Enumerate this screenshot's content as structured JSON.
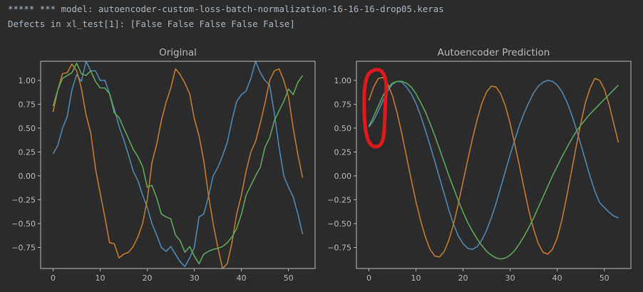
{
  "console": {
    "line1": "***** *** model: autoencoder-custom-loss-batch-normalization-16-16-16-drop05.keras",
    "line2": "Defects in xl_test[1]: [False False False False False]"
  },
  "colors": {
    "background": "#2b2b2b",
    "series_blue": "#4f87b0",
    "series_orange": "#c17a30",
    "series_green": "#5ea65a",
    "annotation_red": "#e0191c"
  },
  "chart_data": [
    {
      "type": "line",
      "title": "Original",
      "xlim": [
        -2.65,
        55.65
      ],
      "ylim": [
        -0.97,
        1.2
      ],
      "xticks": [
        0,
        10,
        20,
        30,
        40,
        50
      ],
      "yticks": [
        -0.75,
        -0.5,
        -0.25,
        0.0,
        0.25,
        0.5,
        0.75,
        1.0
      ],
      "xtick_labels": [
        "0",
        "10",
        "20",
        "30",
        "40",
        "50"
      ],
      "ytick_labels": [
        "−0.75",
        "−0.50",
        "−0.25",
        "0.00",
        "0.25",
        "0.50",
        "0.75",
        "1.00"
      ],
      "grid": false,
      "series": [
        {
          "color": "#4f87b0",
          "x": [
            0,
            1,
            2,
            3,
            4,
            5,
            6,
            7,
            8,
            9,
            10,
            11,
            12,
            13,
            14,
            15,
            16,
            17,
            18,
            19,
            20,
            21,
            22,
            23,
            24,
            25,
            26,
            27,
            28,
            29,
            30,
            31,
            32,
            33,
            34,
            35,
            36,
            37,
            38,
            39,
            40,
            41,
            42,
            43,
            44,
            45,
            46,
            47,
            48,
            49,
            50,
            51,
            52,
            53
          ],
          "y": [
            0.23,
            0.32,
            0.5,
            0.62,
            0.9,
            1.06,
            0.99,
            1.2,
            1.1,
            1.1,
            1.0,
            1.0,
            0.86,
            0.7,
            0.52,
            0.38,
            0.22,
            0.05,
            -0.05,
            -0.2,
            -0.33,
            -0.5,
            -0.62,
            -0.75,
            -0.79,
            -0.74,
            -0.82,
            -0.9,
            -0.95,
            -0.86,
            -0.75,
            -0.43,
            -0.4,
            -0.22,
            0.0,
            0.09,
            0.21,
            0.35,
            0.58,
            0.78,
            0.85,
            0.89,
            1.02,
            1.2,
            1.08,
            1.0,
            0.95,
            0.65,
            0.3,
            0.0,
            -0.12,
            -0.22,
            -0.4,
            -0.61
          ]
        },
        {
          "color": "#c17a30",
          "x": [
            0,
            1,
            2,
            3,
            4,
            5,
            6,
            7,
            8,
            9,
            10,
            11,
            12,
            13,
            14,
            15,
            16,
            17,
            18,
            19,
            20,
            21,
            22,
            23,
            24,
            25,
            26,
            27,
            28,
            29,
            30,
            31,
            32,
            33,
            34,
            35,
            36,
            37,
            38,
            39,
            40,
            41,
            42,
            43,
            44,
            45,
            46,
            47,
            48,
            49,
            50,
            51,
            52,
            53
          ],
          "y": [
            0.67,
            0.9,
            1.07,
            1.08,
            1.17,
            1.1,
            0.92,
            0.64,
            0.45,
            0.08,
            -0.18,
            -0.43,
            -0.7,
            -0.71,
            -0.86,
            -0.82,
            -0.8,
            -0.74,
            -0.64,
            -0.5,
            -0.25,
            0.14,
            0.33,
            0.58,
            0.77,
            0.92,
            1.12,
            1.06,
            0.97,
            0.86,
            0.6,
            0.42,
            0.16,
            -0.2,
            -0.5,
            -0.75,
            -0.97,
            -0.92,
            -0.7,
            -0.4,
            -0.2,
            0.05,
            0.25,
            0.36,
            0.55,
            0.76,
            1.0,
            1.1,
            1.12,
            1.0,
            0.83,
            0.5,
            0.22,
            -0.02
          ]
        },
        {
          "color": "#5ea65a",
          "x": [
            0,
            1,
            2,
            3,
            4,
            5,
            6,
            7,
            8,
            9,
            10,
            11,
            12,
            13,
            14,
            15,
            16,
            17,
            18,
            19,
            20,
            21,
            22,
            23,
            24,
            25,
            26,
            27,
            28,
            29,
            30,
            31,
            32,
            33,
            34,
            35,
            36,
            37,
            38,
            39,
            40,
            41,
            42,
            43,
            44,
            45,
            46,
            47,
            48,
            49,
            50,
            51,
            52,
            53
          ],
          "y": [
            0.73,
            0.9,
            1.02,
            1.05,
            1.08,
            1.18,
            1.07,
            1.05,
            1.1,
            0.99,
            0.92,
            0.92,
            0.86,
            0.66,
            0.61,
            0.5,
            0.39,
            0.28,
            0.2,
            0.1,
            -0.12,
            -0.1,
            -0.23,
            -0.4,
            -0.43,
            -0.45,
            -0.62,
            -0.68,
            -0.8,
            -0.74,
            -0.84,
            -0.92,
            -0.82,
            -0.79,
            -0.77,
            -0.76,
            -0.74,
            -0.7,
            -0.64,
            -0.55,
            -0.4,
            -0.2,
            -0.1,
            0.0,
            0.09,
            0.3,
            0.4,
            0.58,
            0.68,
            0.78,
            0.91,
            0.85,
            0.98,
            1.05
          ]
        }
      ]
    },
    {
      "type": "line",
      "title": "Autoencoder Prediction",
      "xlim": [
        -2.65,
        55.65
      ],
      "ylim": [
        -0.97,
        1.2
      ],
      "xticks": [
        0,
        10,
        20,
        30,
        40,
        50
      ],
      "yticks": [
        -0.75,
        -0.5,
        -0.25,
        0.0,
        0.25,
        0.5,
        0.75,
        1.0
      ],
      "xtick_labels": [
        "0",
        "10",
        "20",
        "30",
        "40",
        "50"
      ],
      "ytick_labels": [
        "−0.75",
        "−0.50",
        "−0.25",
        "0.00",
        "0.25",
        "0.50",
        "0.75",
        "1.00"
      ],
      "grid": false,
      "series": [
        {
          "color": "#4f87b0",
          "x": [
            0,
            1,
            2,
            3,
            4,
            5,
            6,
            7,
            8,
            9,
            10,
            11,
            12,
            13,
            14,
            15,
            16,
            17,
            18,
            19,
            20,
            21,
            22,
            23,
            24,
            25,
            26,
            27,
            28,
            29,
            30,
            31,
            32,
            33,
            34,
            35,
            36,
            37,
            38,
            39,
            40,
            41,
            42,
            43,
            44,
            45,
            46,
            47,
            48,
            49,
            50,
            51,
            52,
            53
          ],
          "y": [
            0.51,
            0.58,
            0.68,
            0.79,
            0.89,
            0.96,
            0.99,
            0.98,
            0.93,
            0.86,
            0.76,
            0.63,
            0.48,
            0.32,
            0.15,
            -0.02,
            -0.19,
            -0.36,
            -0.51,
            -0.63,
            -0.71,
            -0.76,
            -0.77,
            -0.74,
            -0.67,
            -0.57,
            -0.44,
            -0.29,
            -0.12,
            0.05,
            0.22,
            0.38,
            0.53,
            0.66,
            0.77,
            0.87,
            0.94,
            0.98,
            1.0,
            0.99,
            0.95,
            0.88,
            0.78,
            0.65,
            0.5,
            0.33,
            0.16,
            -0.01,
            -0.16,
            -0.28,
            -0.33,
            -0.38,
            -0.42,
            -0.44
          ]
        },
        {
          "color": "#c17a30",
          "x": [
            0,
            1,
            2,
            3,
            4,
            5,
            6,
            7,
            8,
            9,
            10,
            11,
            12,
            13,
            14,
            15,
            16,
            17,
            18,
            19,
            20,
            21,
            22,
            23,
            24,
            25,
            26,
            27,
            28,
            29,
            30,
            31,
            32,
            33,
            34,
            35,
            36,
            37,
            38,
            39,
            40,
            41,
            42,
            43,
            44,
            45,
            46,
            47,
            48,
            49,
            50,
            51,
            52,
            53
          ],
          "y": [
            0.79,
            0.93,
            1.02,
            1.03,
            0.96,
            0.84,
            0.66,
            0.44,
            0.2,
            -0.04,
            -0.27,
            -0.47,
            -0.64,
            -0.77,
            -0.84,
            -0.85,
            -0.79,
            -0.67,
            -0.5,
            -0.29,
            -0.06,
            0.17,
            0.39,
            0.59,
            0.76,
            0.88,
            0.94,
            0.93,
            0.86,
            0.73,
            0.55,
            0.33,
            0.1,
            -0.14,
            -0.37,
            -0.56,
            -0.71,
            -0.8,
            -0.82,
            -0.77,
            -0.65,
            -0.46,
            -0.22,
            0.04,
            0.3,
            0.55,
            0.77,
            0.92,
            1.02,
            1.0,
            0.91,
            0.75,
            0.55,
            0.35
          ]
        },
        {
          "color": "#5ea65a",
          "x": [
            0,
            1,
            2,
            3,
            4,
            5,
            6,
            7,
            8,
            9,
            10,
            11,
            12,
            13,
            14,
            15,
            16,
            17,
            18,
            19,
            20,
            21,
            22,
            23,
            24,
            25,
            26,
            27,
            28,
            29,
            30,
            31,
            32,
            33,
            34,
            35,
            36,
            37,
            38,
            39,
            40,
            41,
            42,
            43,
            44,
            45,
            46,
            47,
            48,
            49,
            50,
            51,
            52,
            53
          ],
          "y": [
            0.52,
            0.62,
            0.73,
            0.84,
            0.92,
            0.97,
            0.99,
            0.99,
            0.97,
            0.93,
            0.86,
            0.77,
            0.67,
            0.55,
            0.42,
            0.28,
            0.14,
            0.0,
            -0.13,
            -0.26,
            -0.38,
            -0.49,
            -0.58,
            -0.66,
            -0.73,
            -0.79,
            -0.83,
            -0.86,
            -0.87,
            -0.86,
            -0.83,
            -0.78,
            -0.71,
            -0.63,
            -0.54,
            -0.44,
            -0.33,
            -0.22,
            -0.11,
            0.0,
            0.1,
            0.2,
            0.29,
            0.38,
            0.46,
            0.53,
            0.59,
            0.65,
            0.7,
            0.75,
            0.8,
            0.85,
            0.9,
            0.95
          ]
        }
      ]
    }
  ]
}
